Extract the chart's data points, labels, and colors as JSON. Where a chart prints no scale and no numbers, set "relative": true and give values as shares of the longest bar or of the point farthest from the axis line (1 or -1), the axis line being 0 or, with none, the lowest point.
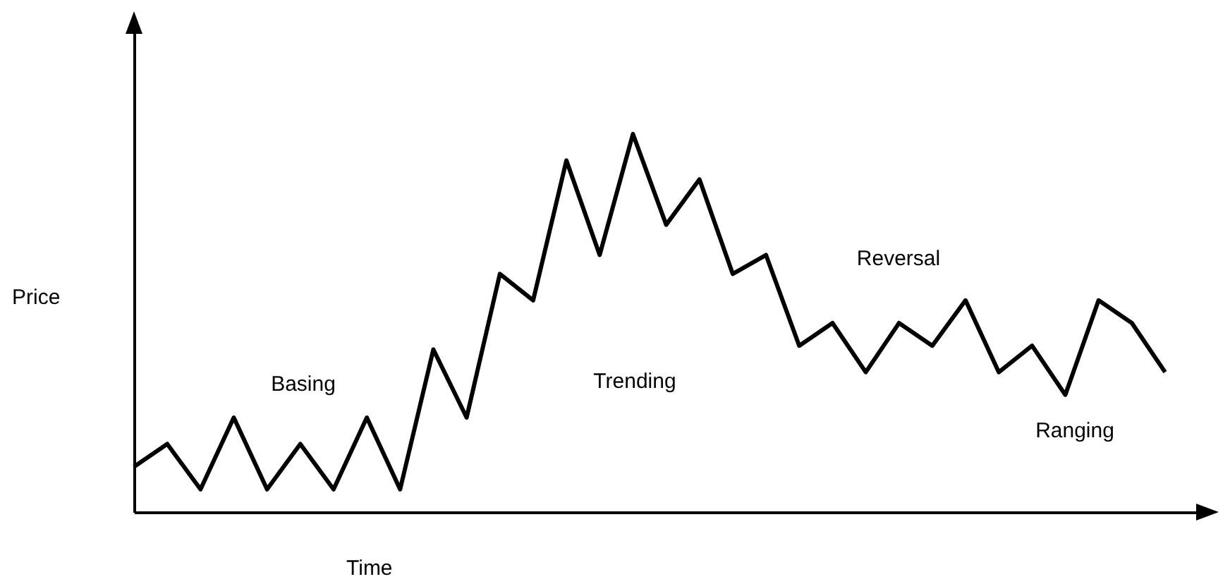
{
  "chart_data": {
    "type": "line",
    "relative": true,
    "xlabel": "Time",
    "ylabel": "Price",
    "color": "#000000",
    "grid": false,
    "marker": "none",
    "line_style": "solid",
    "categories": [
      null,
      null,
      null,
      null,
      null,
      null,
      null,
      null,
      null,
      null,
      null,
      null,
      null,
      null,
      null,
      null,
      null,
      null,
      null,
      null,
      null,
      null,
      null,
      null,
      null,
      null,
      null,
      null,
      null,
      null,
      null,
      null
    ],
    "values": [
      0.12,
      0.18,
      0.06,
      0.25,
      0.06,
      0.18,
      0.06,
      0.25,
      0.06,
      0.43,
      0.25,
      0.63,
      0.56,
      0.93,
      0.68,
      1,
      0.76,
      0.88,
      0.63,
      0.68,
      0.44,
      0.5,
      0.37,
      0.5,
      0.44,
      0.56,
      0.37,
      0.44,
      0.31,
      0.56,
      0.5,
      0.37
    ],
    "annotations": [
      "Basing",
      "Trending",
      "Reversal",
      "Ranging"
    ]
  }
}
